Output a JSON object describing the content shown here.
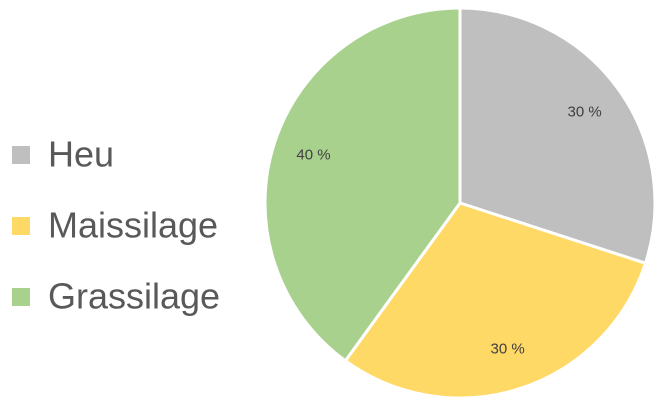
{
  "chart_data": {
    "type": "pie",
    "categories": [
      "Heu",
      "Maissilage",
      "Grassilage"
    ],
    "values": [
      30,
      30,
      40
    ],
    "value_labels": [
      "30 %",
      "30 %",
      "40 %"
    ],
    "colors": [
      "#bfbfbf",
      "#ffd966",
      "#a9d18e"
    ]
  }
}
